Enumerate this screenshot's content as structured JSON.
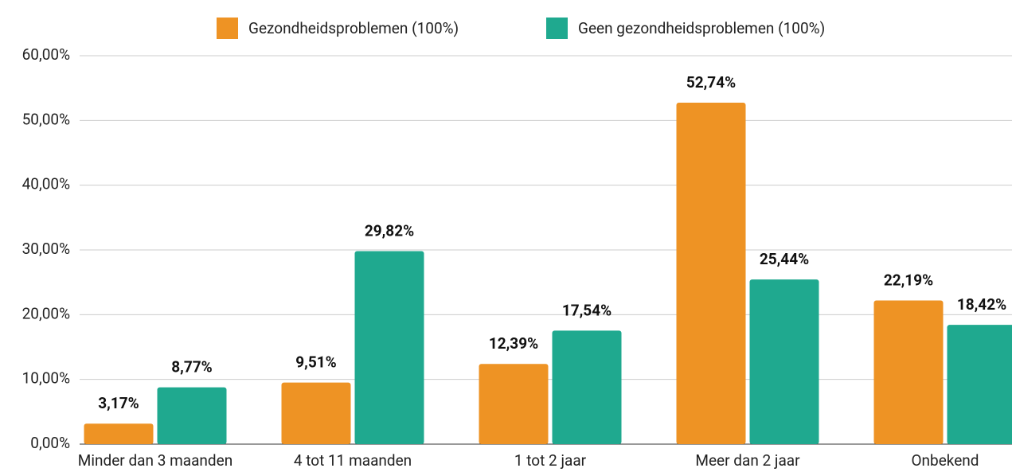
{
  "chart_data": {
    "type": "bar",
    "categories": [
      "Minder dan 3 maanden",
      "4 tot 11 maanden",
      "1 tot 2 jaar",
      "Meer dan 2 jaar",
      "Onbekend"
    ],
    "series": [
      {
        "name": "Gezondheidsproblemen (100%)",
        "color": "#ee9324",
        "values": [
          3.17,
          9.51,
          12.39,
          52.74,
          22.19
        ],
        "value_labels": [
          "3,17%",
          "9,51%",
          "12,39%",
          "52,74%",
          "22,19%"
        ]
      },
      {
        "name": "Geen gezondheidsproblemen (100%)",
        "color": "#1fa98f",
        "values": [
          8.77,
          29.82,
          17.54,
          25.44,
          18.42
        ],
        "value_labels": [
          "8,77%",
          "29,82%",
          "17,54%",
          "25,44%",
          "18,42%"
        ]
      }
    ],
    "ylim": [
      0,
      60
    ],
    "yticks": [
      {
        "value": 0,
        "label": "0,00%"
      },
      {
        "value": 10,
        "label": "10,00%"
      },
      {
        "value": 20,
        "label": "20,00%"
      },
      {
        "value": 30,
        "label": "30,00%"
      },
      {
        "value": 40,
        "label": "40,00%"
      },
      {
        "value": 50,
        "label": "50,00%"
      },
      {
        "value": 60,
        "label": "60,00%"
      }
    ],
    "grid": true,
    "legend": "top"
  }
}
